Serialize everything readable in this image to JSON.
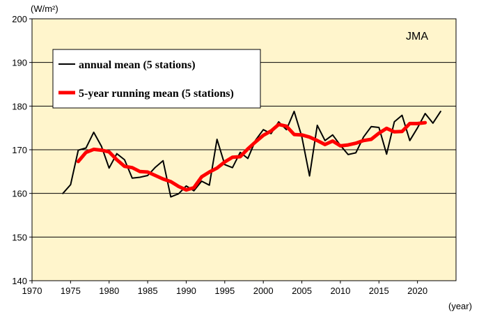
{
  "chart_data": {
    "type": "line",
    "unit_label": "(W/m²)",
    "xlabel": "(year)",
    "credit": "JMA",
    "xlim": [
      1970,
      2025
    ],
    "ylim": [
      140,
      200
    ],
    "xticks": [
      1970,
      1975,
      1980,
      1985,
      1990,
      1995,
      2000,
      2005,
      2010,
      2015,
      2020
    ],
    "yticks": [
      140,
      150,
      160,
      170,
      180,
      190,
      200
    ],
    "grid": "horizontal",
    "legend_position": "top-left",
    "colors": {
      "plot_background": "#FFF5CC",
      "annual": "#000000",
      "running": "#FF0000"
    },
    "series": [
      {
        "name": "annual mean (5 stations)",
        "color": "#000000",
        "x": [
          1974,
          1975,
          1976,
          1977,
          1978,
          1979,
          1980,
          1981,
          1982,
          1983,
          1984,
          1985,
          1986,
          1987,
          1988,
          1989,
          1990,
          1991,
          1992,
          1993,
          1994,
          1995,
          1996,
          1997,
          1998,
          1999,
          2000,
          2001,
          2002,
          2003,
          2004,
          2005,
          2006,
          2007,
          2008,
          2009,
          2010,
          2011,
          2012,
          2013,
          2014,
          2015,
          2016,
          2017,
          2018,
          2019,
          2020,
          2021,
          2022,
          2023
        ],
        "values": [
          160.0,
          162.0,
          169.9,
          170.4,
          174.0,
          170.8,
          165.8,
          169.1,
          167.7,
          163.5,
          163.7,
          164.1,
          166.0,
          167.5,
          159.2,
          159.9,
          161.7,
          160.6,
          162.8,
          161.9,
          172.4,
          166.6,
          165.9,
          169.4,
          168.0,
          172.2,
          174.6,
          173.7,
          176.4,
          174.6,
          178.8,
          173.0,
          164.0,
          175.6,
          172.1,
          173.4,
          171.0,
          168.9,
          169.3,
          172.9,
          175.3,
          175.1,
          169.0,
          176.4,
          177.9,
          172.1,
          175.0,
          178.3,
          176.1,
          178.8
        ]
      },
      {
        "name": "5-year running mean (5 stations)",
        "color": "#FF0000",
        "x": [
          1976,
          1977,
          1978,
          1979,
          1980,
          1981,
          1982,
          1983,
          1984,
          1985,
          1986,
          1987,
          1988,
          1989,
          1990,
          1991,
          1992,
          1993,
          1994,
          1995,
          1996,
          1997,
          1998,
          1999,
          2000,
          2001,
          2002,
          2003,
          2004,
          2005,
          2006,
          2007,
          2008,
          2009,
          2010,
          2011,
          2012,
          2013,
          2014,
          2015,
          2016,
          2017,
          2018,
          2019,
          2020,
          2021
        ],
        "values": [
          167.3,
          169.4,
          170.1,
          169.9,
          169.5,
          167.7,
          166.2,
          165.9,
          165.0,
          164.9,
          164.1,
          163.3,
          162.7,
          161.6,
          160.8,
          161.3,
          163.8,
          164.9,
          165.8,
          167.2,
          168.3,
          168.4,
          170.2,
          171.8,
          173.3,
          174.3,
          175.8,
          175.4,
          173.5,
          173.4,
          172.9,
          172.1,
          171.2,
          172.0,
          170.9,
          171.1,
          171.5,
          172.1,
          172.4,
          173.8,
          174.9,
          174.1,
          174.2,
          176.0,
          176.0,
          176.2
        ]
      }
    ]
  }
}
